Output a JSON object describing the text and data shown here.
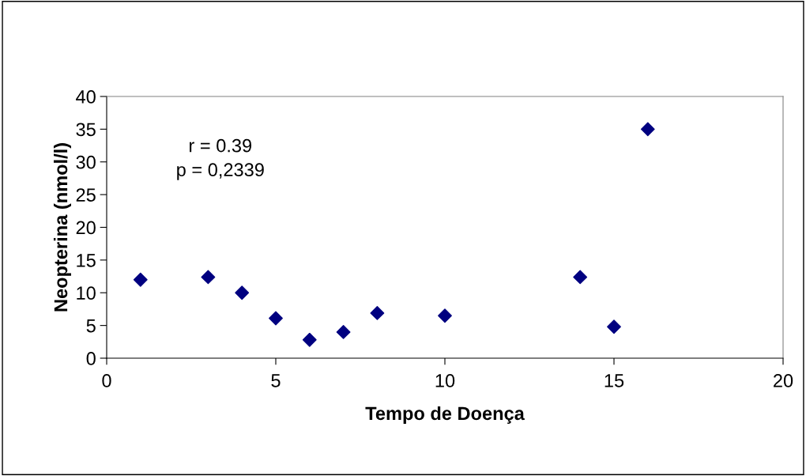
{
  "chart_data": {
    "type": "scatter",
    "xlabel": "Tempo de Doença",
    "ylabel": "Neopterina (nmol/l)",
    "x": [
      1,
      3,
      4,
      5,
      6,
      7,
      8,
      10,
      14,
      15,
      16
    ],
    "series": [
      {
        "color": "#000080",
        "values": [
          12.0,
          12.4,
          10.0,
          6.1,
          2.8,
          4.0,
          6.9,
          6.5,
          12.4,
          4.8,
          35.0
        ]
      }
    ],
    "xlim": [
      0,
      20
    ],
    "xticks": [
      0,
      5,
      10,
      15,
      20
    ],
    "ylim": [
      0,
      40
    ],
    "yticks": [
      0,
      5,
      10,
      15,
      20,
      25,
      30,
      35,
      40
    ],
    "marker": "diamond",
    "grid": false,
    "legend": false,
    "annotations": [
      "r = 0.39\np = 0,2339"
    ]
  }
}
